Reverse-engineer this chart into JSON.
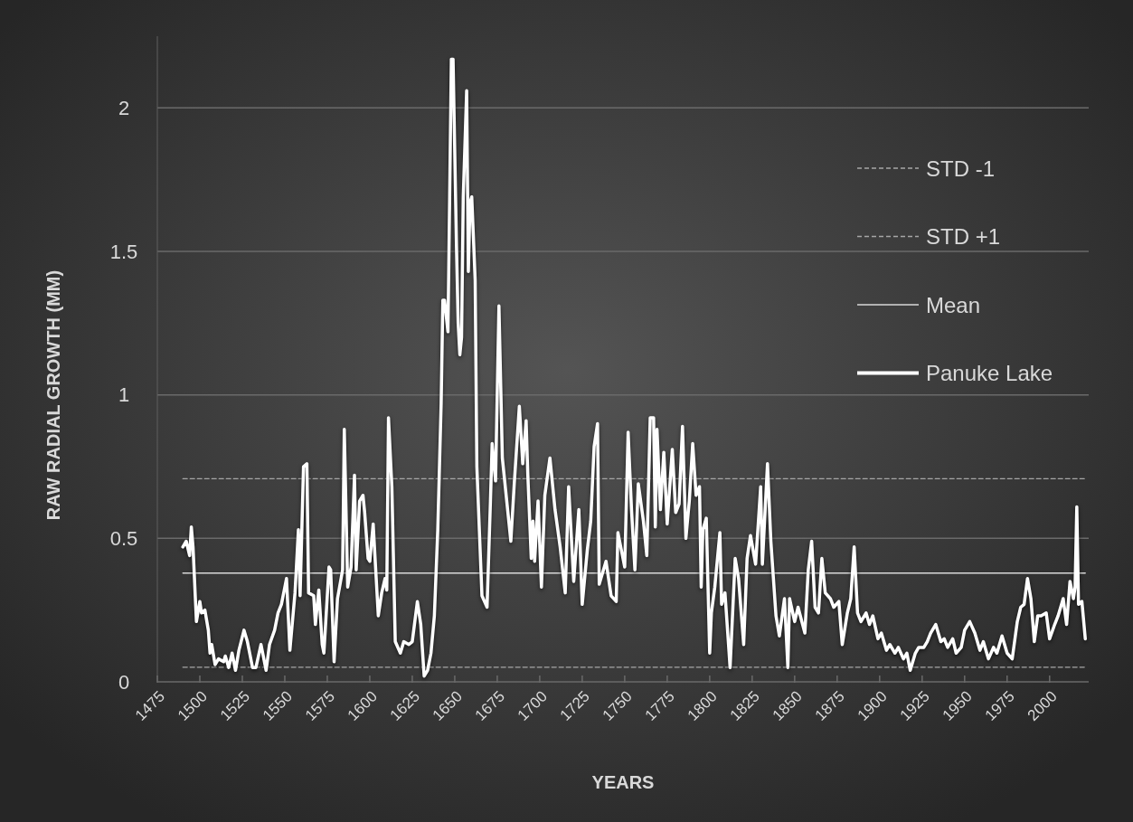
{
  "chart_data": {
    "type": "line",
    "xlabel": "YEARS",
    "ylabel": "RAW RADIAL GROWTH (MM)",
    "xlim": [
      1475,
      2023
    ],
    "xticks": [
      1475,
      1500,
      1525,
      1550,
      1575,
      1600,
      1625,
      1650,
      1675,
      1700,
      1725,
      1750,
      1775,
      1800,
      1825,
      1850,
      1875,
      1900,
      1925,
      1950,
      1975,
      2000
    ],
    "ylim": [
      0,
      2.25
    ],
    "yticks": [
      0,
      0.5,
      1,
      1.5,
      2
    ],
    "grid": "y",
    "legend": "top right",
    "series": [
      {
        "name": "STD -1",
        "color": "#a6a6a6",
        "line_style": "dashed",
        "x": [
          1490,
          2021
        ],
        "values": [
          0.051,
          0.051
        ]
      },
      {
        "name": "STD +1",
        "color": "#a6a6a6",
        "line_style": "dashed",
        "x": [
          1490,
          2021
        ],
        "values": [
          0.708,
          0.708
        ]
      },
      {
        "name": "Mean",
        "color": "#d9d9d9",
        "line_style": "solid",
        "x": [
          1490,
          2021
        ],
        "values": [
          0.379,
          0.379
        ]
      },
      {
        "name": "Panuke Lake",
        "color": "#ffffff",
        "line_style": "solid",
        "x": [
          1490,
          1492,
          1494,
          1495,
          1496,
          1498,
          1500,
          1501,
          1503,
          1505,
          1506,
          1507,
          1509,
          1511,
          1514,
          1515,
          1517,
          1519,
          1521,
          1523,
          1526,
          1528,
          1531,
          1533,
          1536,
          1539,
          1541,
          1544,
          1546,
          1548,
          1551,
          1553,
          1556,
          1558,
          1559,
          1561,
          1563,
          1564,
          1567,
          1568,
          1570,
          1572,
          1573,
          1576,
          1577,
          1579,
          1581,
          1584,
          1585,
          1587,
          1589,
          1591,
          1592,
          1594,
          1596,
          1597,
          1599,
          1600,
          1602,
          1605,
          1607,
          1609,
          1610,
          1611,
          1613,
          1615,
          1618,
          1620,
          1623,
          1625,
          1628,
          1630,
          1632,
          1634,
          1636,
          1638,
          1640,
          1642,
          1643,
          1644,
          1646,
          1647,
          1648,
          1649,
          1651,
          1652,
          1653,
          1654,
          1655,
          1657,
          1658,
          1659,
          1660,
          1662,
          1663,
          1666,
          1669,
          1671,
          1672,
          1674,
          1676,
          1678,
          1683,
          1685,
          1688,
          1690,
          1692,
          1693,
          1695,
          1696,
          1697,
          1699,
          1701,
          1703,
          1706,
          1709,
          1712,
          1715,
          1717,
          1720,
          1723,
          1725,
          1728,
          1730,
          1732,
          1734,
          1735,
          1739,
          1742,
          1745,
          1746,
          1748,
          1750,
          1752,
          1754,
          1756,
          1758,
          1761,
          1763,
          1765,
          1767,
          1768,
          1769,
          1771,
          1773,
          1775,
          1778,
          1780,
          1782,
          1784,
          1786,
          1788,
          1790,
          1792,
          1794,
          1795,
          1796,
          1798,
          1800,
          1801,
          1803,
          1806,
          1807,
          1809,
          1812,
          1815,
          1817,
          1820,
          1822,
          1824,
          1827,
          1830,
          1831,
          1834,
          1836,
          1839,
          1841,
          1844,
          1846,
          1847,
          1850,
          1852,
          1856,
          1858,
          1860,
          1862,
          1864,
          1866,
          1868,
          1871,
          1873,
          1876,
          1878,
          1881,
          1883,
          1885,
          1887,
          1889,
          1892,
          1894,
          1896,
          1899,
          1901,
          1904,
          1906,
          1909,
          1911,
          1914,
          1916,
          1918,
          1921,
          1923,
          1926,
          1928,
          1930,
          1933,
          1936,
          1938,
          1940,
          1943,
          1945,
          1948,
          1950,
          1953,
          1956,
          1959,
          1961,
          1964,
          1967,
          1969,
          1972,
          1975,
          1978,
          1981,
          1983,
          1985,
          1987,
          1989,
          1991,
          1993,
          1995,
          1998,
          2000,
          2003,
          2005,
          2008,
          2010,
          2012,
          2014,
          2015,
          2016,
          2017,
          2019,
          2021
        ],
        "values": [
          0.47,
          0.49,
          0.44,
          0.54,
          0.47,
          0.21,
          0.28,
          0.24,
          0.25,
          0.18,
          0.1,
          0.13,
          0.06,
          0.08,
          0.07,
          0.09,
          0.05,
          0.1,
          0.04,
          0.11,
          0.18,
          0.14,
          0.05,
          0.05,
          0.13,
          0.04,
          0.13,
          0.18,
          0.24,
          0.27,
          0.36,
          0.11,
          0.31,
          0.53,
          0.3,
          0.75,
          0.76,
          0.31,
          0.3,
          0.2,
          0.32,
          0.13,
          0.1,
          0.4,
          0.39,
          0.07,
          0.29,
          0.39,
          0.88,
          0.33,
          0.4,
          0.72,
          0.39,
          0.63,
          0.65,
          0.59,
          0.43,
          0.42,
          0.55,
          0.23,
          0.31,
          0.36,
          0.32,
          0.92,
          0.68,
          0.14,
          0.1,
          0.14,
          0.13,
          0.14,
          0.28,
          0.2,
          0.02,
          0.04,
          0.1,
          0.23,
          0.53,
          0.97,
          1.33,
          1.33,
          1.22,
          1.69,
          2.17,
          2.17,
          1.52,
          1.25,
          1.14,
          1.2,
          1.69,
          2.06,
          1.43,
          1.67,
          1.69,
          1.4,
          0.75,
          0.3,
          0.26,
          0.63,
          0.83,
          0.7,
          1.31,
          0.78,
          0.49,
          0.69,
          0.96,
          0.76,
          0.91,
          0.72,
          0.43,
          0.56,
          0.42,
          0.63,
          0.33,
          0.65,
          0.78,
          0.6,
          0.47,
          0.31,
          0.68,
          0.35,
          0.6,
          0.27,
          0.46,
          0.56,
          0.82,
          0.9,
          0.34,
          0.42,
          0.3,
          0.28,
          0.52,
          0.46,
          0.4,
          0.87,
          0.6,
          0.39,
          0.69,
          0.56,
          0.44,
          0.92,
          0.92,
          0.54,
          0.88,
          0.6,
          0.8,
          0.55,
          0.81,
          0.59,
          0.62,
          0.89,
          0.5,
          0.63,
          0.83,
          0.65,
          0.68,
          0.33,
          0.53,
          0.57,
          0.1,
          0.24,
          0.33,
          0.52,
          0.27,
          0.31,
          0.05,
          0.43,
          0.36,
          0.13,
          0.43,
          0.51,
          0.41,
          0.68,
          0.41,
          0.76,
          0.49,
          0.23,
          0.16,
          0.29,
          0.05,
          0.29,
          0.21,
          0.26,
          0.17,
          0.39,
          0.49,
          0.26,
          0.24,
          0.43,
          0.31,
          0.29,
          0.26,
          0.28,
          0.13,
          0.24,
          0.29,
          0.47,
          0.24,
          0.21,
          0.24,
          0.2,
          0.23,
          0.15,
          0.17,
          0.11,
          0.13,
          0.1,
          0.12,
          0.08,
          0.1,
          0.04,
          0.1,
          0.12,
          0.12,
          0.14,
          0.17,
          0.2,
          0.14,
          0.15,
          0.12,
          0.15,
          0.1,
          0.12,
          0.18,
          0.21,
          0.17,
          0.11,
          0.14,
          0.08,
          0.12,
          0.1,
          0.16,
          0.1,
          0.08,
          0.21,
          0.26,
          0.27,
          0.36,
          0.29,
          0.14,
          0.23,
          0.23,
          0.24,
          0.15,
          0.2,
          0.23,
          0.29,
          0.2,
          0.35,
          0.29,
          0.33,
          0.61,
          0.27,
          0.28,
          0.15
        ]
      }
    ]
  }
}
